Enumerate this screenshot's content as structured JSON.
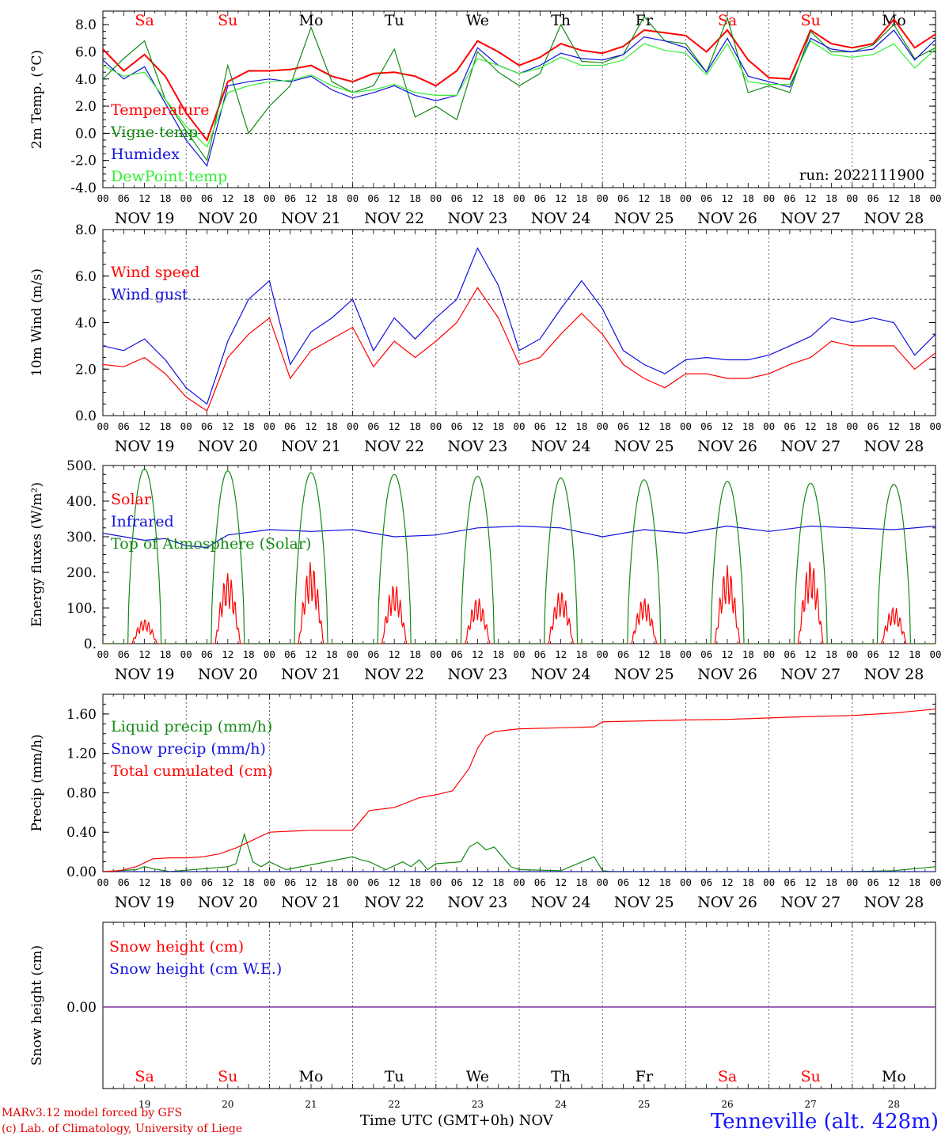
{
  "run_label": "run: 2022111900",
  "x_axis": {
    "hour_ticks": [
      "00",
      "06",
      "12",
      "18"
    ],
    "final_tick": "00",
    "dates": [
      "NOV 19",
      "NOV 20",
      "NOV 21",
      "NOV 22",
      "NOV 23",
      "NOV 24",
      "NOV 25",
      "NOV 26",
      "NOV 27",
      "NOV 28"
    ],
    "bottom_day_numbers": [
      "19",
      "20",
      "21",
      "22",
      "23",
      "24",
      "25",
      "26",
      "27",
      "28"
    ],
    "title": "Time UTC (GMT+0h)",
    "month": "NOV"
  },
  "weekdays": [
    {
      "label": "Sa",
      "weekend": true
    },
    {
      "label": "Su",
      "weekend": true
    },
    {
      "label": "Mo",
      "weekend": false
    },
    {
      "label": "Tu",
      "weekend": false
    },
    {
      "label": "We",
      "weekend": false
    },
    {
      "label": "Th",
      "weekend": false
    },
    {
      "label": "Fr",
      "weekend": false
    },
    {
      "label": "Sa",
      "weekend": true
    },
    {
      "label": "Su",
      "weekend": true
    },
    {
      "label": "Mo",
      "weekend": false
    }
  ],
  "colors": {
    "red": "#ff0000",
    "green": "#138a13",
    "blue": "#1010e0",
    "lightgreen": "#33ee33",
    "purple": "#7a2a9a",
    "weekend": "#ff0000",
    "station": "#1515ff"
  },
  "footer": {
    "credit_line1": "MARv3.12 model forced by GFS",
    "credit_line2": "(c) Lab. of Climatology, University of Liege",
    "station": "Tenneville (alt. 428m)"
  },
  "chart_data": [
    {
      "type": "line",
      "ylabel": "2m Temp. (°C)",
      "ylim": [
        -4,
        9
      ],
      "yticks": [
        "-4.0",
        "-2.0",
        "0.0",
        "2.0",
        "4.0",
        "6.0",
        "8.0"
      ],
      "reference_line": 0,
      "x_days": [
        0,
        0.25,
        0.5,
        0.75,
        1,
        1.25,
        1.5,
        1.75,
        2,
        2.25,
        2.5,
        2.75,
        3,
        3.25,
        3.5,
        3.75,
        4,
        4.25,
        4.5,
        4.75,
        5,
        5.25,
        5.5,
        5.75,
        6,
        6.25,
        6.5,
        6.75,
        7,
        7.25,
        7.5,
        7.75,
        8,
        8.25,
        8.5,
        8.75,
        9,
        9.25,
        9.5,
        9.75,
        10
      ],
      "series": [
        {
          "name": "Temperature",
          "color": "red",
          "values": [
            6.2,
            4.6,
            5.8,
            4.2,
            1.5,
            -0.5,
            3.8,
            4.6,
            4.6,
            4.7,
            5.0,
            4.2,
            3.8,
            4.4,
            4.5,
            4.2,
            3.5,
            4.6,
            6.8,
            6.0,
            5.0,
            5.6,
            6.6,
            6.1,
            5.9,
            6.4,
            7.6,
            7.4,
            7.2,
            6.0,
            7.6,
            5.4,
            4.1,
            4.0,
            7.6,
            6.6,
            6.3,
            6.6,
            8.4,
            6.3,
            7.3
          ]
        },
        {
          "name": "Vigne temp",
          "color": "green",
          "values": [
            4.0,
            5.5,
            6.8,
            2.5,
            0.2,
            -2.0,
            5.0,
            0.0,
            2.0,
            3.5,
            7.8,
            3.8,
            3.0,
            3.5,
            6.2,
            1.2,
            2.0,
            1.0,
            6.0,
            4.5,
            3.5,
            4.4,
            8.0,
            5.3,
            5.2,
            5.8,
            8.6,
            6.8,
            6.6,
            4.5,
            8.5,
            3.0,
            3.5,
            3.0,
            7.5,
            6.0,
            6.0,
            6.5,
            8.0,
            5.5,
            6.3
          ]
        },
        {
          "name": "Humidex",
          "color": "blue",
          "values": [
            5.4,
            4.0,
            4.9,
            2.2,
            -0.5,
            -2.4,
            3.5,
            3.8,
            4.0,
            3.8,
            4.2,
            3.2,
            2.6,
            3.0,
            3.5,
            2.8,
            2.4,
            2.8,
            6.3,
            5.0,
            4.4,
            5.0,
            5.9,
            5.5,
            5.4,
            5.8,
            7.1,
            6.8,
            6.3,
            4.5,
            7.0,
            4.2,
            3.8,
            3.4,
            7.0,
            6.2,
            6.0,
            6.2,
            7.6,
            5.4,
            6.9
          ]
        },
        {
          "name": "DewPoint temp",
          "color": "lightgreen",
          "values": [
            5.0,
            4.2,
            4.5,
            2.5,
            0.5,
            -1.0,
            3.0,
            3.5,
            3.8,
            3.9,
            4.3,
            3.5,
            3.0,
            3.2,
            3.6,
            3.0,
            2.8,
            2.8,
            5.5,
            5.0,
            4.4,
            4.8,
            5.6,
            5.0,
            5.0,
            5.4,
            6.6,
            6.1,
            5.9,
            4.3,
            6.6,
            3.8,
            3.6,
            3.6,
            6.8,
            5.8,
            5.6,
            5.8,
            6.6,
            4.8,
            6.2
          ]
        }
      ]
    },
    {
      "type": "line",
      "ylabel": "10m Wind (m/s)",
      "ylim": [
        0,
        8
      ],
      "yticks": [
        "0.0",
        "2.0",
        "4.0",
        "6.0",
        "8.0"
      ],
      "reference_line": 5,
      "x_days": [
        0,
        0.25,
        0.5,
        0.75,
        1,
        1.25,
        1.5,
        1.75,
        2,
        2.25,
        2.5,
        2.75,
        3,
        3.25,
        3.5,
        3.75,
        4,
        4.25,
        4.5,
        4.75,
        5,
        5.25,
        5.5,
        5.75,
        6,
        6.25,
        6.5,
        6.75,
        7,
        7.25,
        7.5,
        7.75,
        8,
        8.25,
        8.5,
        8.75,
        9,
        9.25,
        9.5,
        9.75,
        10
      ],
      "series": [
        {
          "name": "Wind speed",
          "color": "red",
          "values": [
            2.2,
            2.1,
            2.5,
            1.8,
            0.8,
            0.2,
            2.5,
            3.5,
            4.2,
            1.6,
            2.8,
            3.3,
            3.8,
            2.1,
            3.2,
            2.5,
            3.2,
            4.0,
            5.5,
            4.2,
            2.2,
            2.5,
            3.5,
            4.4,
            3.5,
            2.2,
            1.6,
            1.2,
            1.8,
            1.8,
            1.6,
            1.6,
            1.8,
            2.2,
            2.5,
            3.2,
            3.0,
            3.0,
            3.0,
            2.0,
            2.7
          ]
        },
        {
          "name": "Wind gust",
          "color": "blue",
          "values": [
            3.0,
            2.8,
            3.3,
            2.4,
            1.2,
            0.5,
            3.2,
            5.0,
            5.8,
            2.2,
            3.6,
            4.2,
            5.0,
            2.8,
            4.2,
            3.3,
            4.2,
            5.0,
            7.2,
            5.6,
            2.8,
            3.3,
            4.6,
            5.8,
            4.6,
            2.8,
            2.2,
            1.8,
            2.4,
            2.5,
            2.4,
            2.4,
            2.6,
            3.0,
            3.4,
            4.2,
            4.0,
            4.2,
            4.0,
            2.6,
            3.5
          ]
        }
      ]
    },
    {
      "type": "line",
      "ylabel": "Energy fluxes (W/m²)",
      "ylim": [
        0,
        500
      ],
      "yticks": [
        "0.",
        "100.",
        "200.",
        "300.",
        "400.",
        "500."
      ],
      "series": [
        {
          "name": "Solar",
          "color": "red",
          "peaks_by_day": [
            70,
            200,
            230,
            170,
            130,
            150,
            130,
            220,
            235,
            105
          ]
        },
        {
          "name": "Infrared",
          "color": "blue",
          "x_days": [
            0,
            0.5,
            0.75,
            1,
            1.25,
            1.5,
            2,
            2.5,
            3,
            3.5,
            4,
            4.5,
            5,
            5.5,
            6,
            6.5,
            7,
            7.5,
            8,
            8.5,
            9,
            9.5,
            10
          ],
          "values": [
            310,
            290,
            295,
            275,
            270,
            305,
            320,
            315,
            320,
            300,
            305,
            325,
            330,
            325,
            300,
            320,
            310,
            330,
            315,
            330,
            325,
            320,
            330
          ]
        },
        {
          "name": "Top of Atmosphere (Solar)",
          "color": "green",
          "peaks_by_day": [
            490,
            485,
            480,
            475,
            470,
            465,
            460,
            455,
            450,
            447
          ]
        }
      ]
    },
    {
      "type": "line",
      "ylabel": "Precip (mm/h)",
      "ylim": [
        0,
        1.8
      ],
      "yticks": [
        "0.00",
        "0.40",
        "0.80",
        "1.20",
        "1.60"
      ],
      "series": [
        {
          "name": "Liquid precip (mm/h)",
          "color": "green",
          "x_days": [
            0,
            0.4,
            0.5,
            0.6,
            0.8,
            1.5,
            1.6,
            1.7,
            1.8,
            1.9,
            2.0,
            2.2,
            3.0,
            3.1,
            3.2,
            3.4,
            3.6,
            3.7,
            3.8,
            3.9,
            4.0,
            4.3,
            4.4,
            4.5,
            4.6,
            4.7,
            4.8,
            4.9,
            5.0,
            5.5,
            5.9,
            6.0,
            6.1,
            6.5,
            7,
            8,
            9,
            9.5,
            10
          ],
          "values": [
            0,
            0.02,
            0.05,
            0.03,
            0,
            0.05,
            0.08,
            0.38,
            0.1,
            0.05,
            0.1,
            0.02,
            0.15,
            0.12,
            0.1,
            0.02,
            0.1,
            0.05,
            0.12,
            0.02,
            0.08,
            0.1,
            0.25,
            0.3,
            0.22,
            0.25,
            0.15,
            0.05,
            0.02,
            0.01,
            0.15,
            0.01,
            0,
            0,
            0,
            0,
            0,
            0.01,
            0.05
          ]
        },
        {
          "name": "Snow precip (mm/h)",
          "color": "blue",
          "x_days": [
            0,
            10
          ],
          "values": [
            0,
            0
          ]
        },
        {
          "name": "Total cumulated (cm)",
          "color": "red",
          "x_days": [
            0,
            0.2,
            0.4,
            0.6,
            0.8,
            1.0,
            1.2,
            1.4,
            1.6,
            1.8,
            2.0,
            2.5,
            3.0,
            3.1,
            3.2,
            3.5,
            3.8,
            4.0,
            4.2,
            4.4,
            4.5,
            4.6,
            4.7,
            4.8,
            5.0,
            5.5,
            5.9,
            6.0,
            6.5,
            7.0,
            7.5,
            8.0,
            8.5,
            9.0,
            9.5,
            10.0
          ],
          "values": [
            0,
            0.01,
            0.05,
            0.13,
            0.14,
            0.14,
            0.15,
            0.18,
            0.24,
            0.32,
            0.4,
            0.42,
            0.42,
            0.52,
            0.62,
            0.65,
            0.75,
            0.78,
            0.82,
            1.05,
            1.25,
            1.38,
            1.42,
            1.43,
            1.45,
            1.46,
            1.47,
            1.52,
            1.53,
            1.54,
            1.545,
            1.56,
            1.575,
            1.585,
            1.61,
            1.65
          ]
        }
      ]
    },
    {
      "type": "line",
      "ylabel": "Snow height (cm)",
      "yticks": [
        "0.00"
      ],
      "series": [
        {
          "name": "Snow height (cm)",
          "color": "red",
          "x_days": [
            0,
            10
          ],
          "values": [
            0,
            0
          ]
        },
        {
          "name": "Snow height (cm W.E.)",
          "color": "blue",
          "x_days": [
            0,
            10
          ],
          "values": [
            0,
            0
          ]
        }
      ]
    }
  ]
}
